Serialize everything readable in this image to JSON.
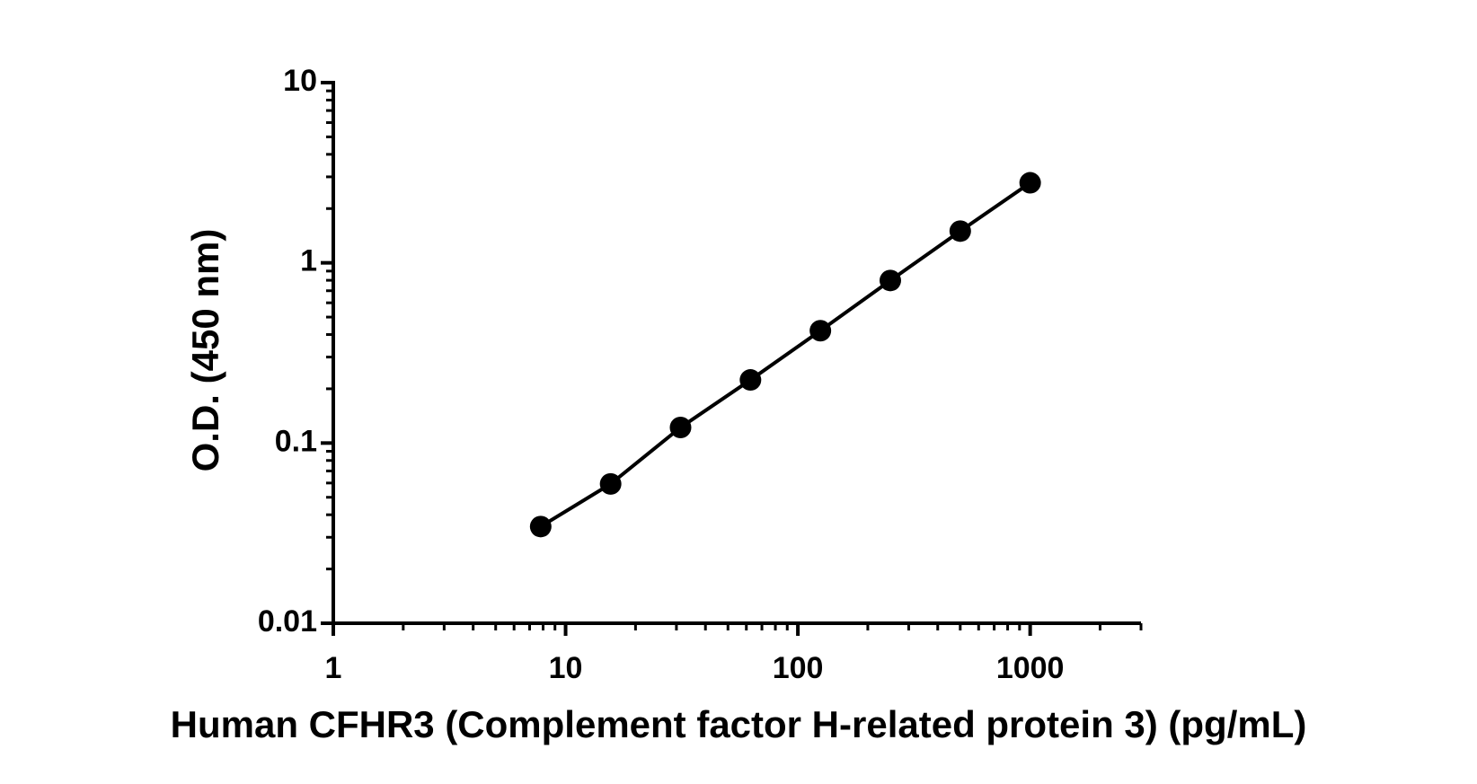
{
  "chart_data": {
    "type": "line",
    "x_label": "Human CFHR3 (Complement factor H-related protein 3) (pg/mL)",
    "y_label": "O.D. (450 nm)",
    "x": [
      7.8125,
      15.625,
      31.25,
      62.5,
      125,
      250,
      500,
      1000
    ],
    "series": [
      {
        "color": "#000000",
        "values": [
          0.0344,
          0.0593,
          0.122,
          0.224,
          0.42,
          0.798,
          1.5,
          2.78
        ]
      }
    ],
    "x_scale": "log",
    "y_scale": "log",
    "xlim": [
      1,
      3000
    ],
    "ylim": [
      0.01,
      10
    ],
    "xticks": [
      1,
      10,
      100,
      1000
    ],
    "yticks": [
      0.01,
      0.1,
      1,
      10
    ],
    "markers": true,
    "grid": false
  }
}
